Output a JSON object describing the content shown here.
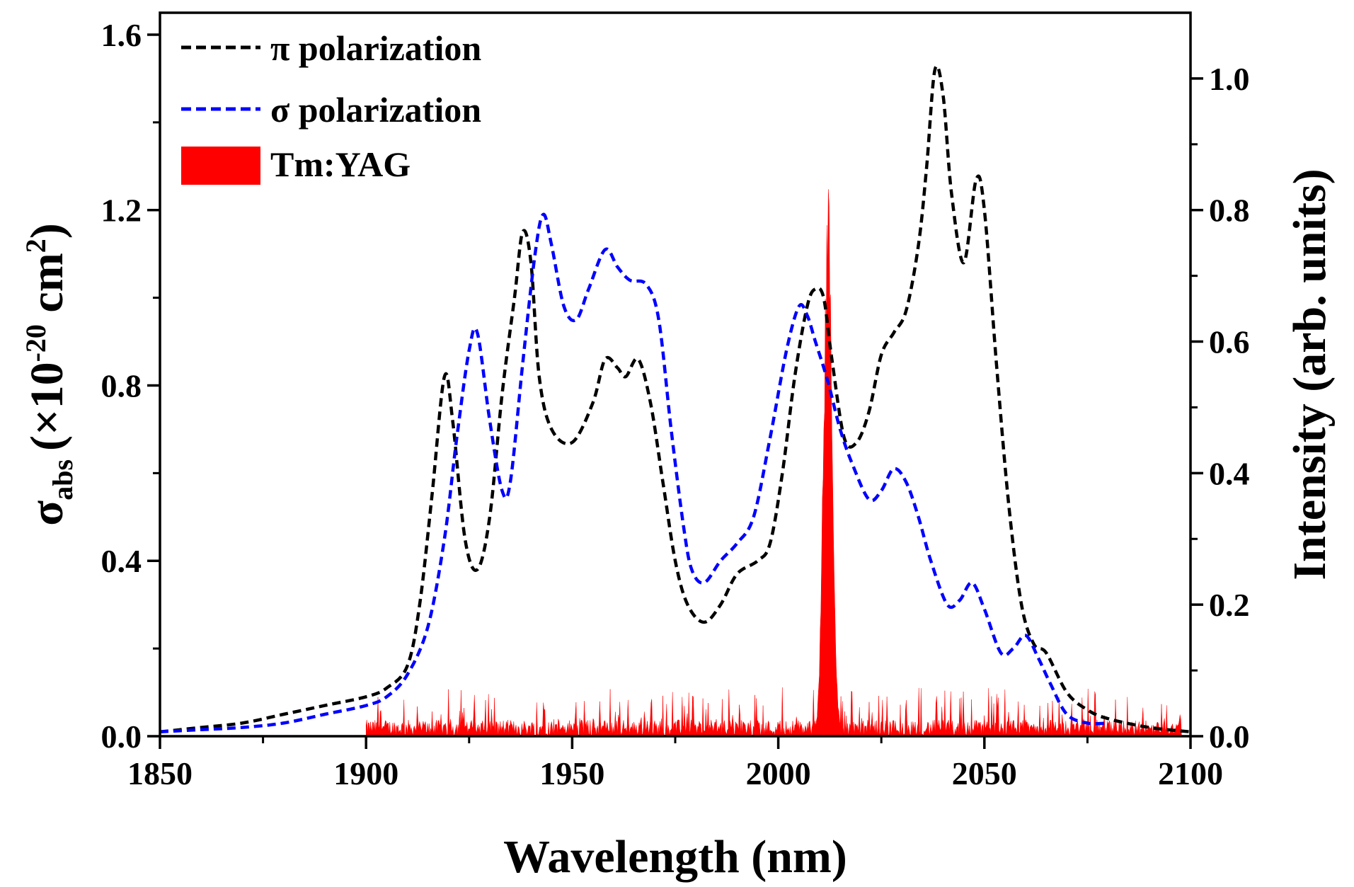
{
  "chart_data": {
    "type": "line",
    "title": "",
    "xlabel": "Wavelength (nm)",
    "ylabel": {
      "symbol": "σ",
      "subscript": "abs",
      "units_prefix": "(×10",
      "units_exponent": "-20",
      "units_middle": " cm",
      "units_power": "2",
      "units_suffix": ")"
    },
    "y2label": "Intensity (arb. units)",
    "xlim": [
      1850,
      2100
    ],
    "ylim": [
      0,
      1.65
    ],
    "y2lim": [
      0,
      1.1
    ],
    "xticks": [
      1850,
      1900,
      1950,
      2000,
      2050,
      2100
    ],
    "xtick_labels": [
      "1850",
      "1900",
      "1950",
      "2000",
      "2050",
      "2100"
    ],
    "yticks": [
      0.0,
      0.4,
      0.8,
      1.2,
      1.6
    ],
    "ytick_labels": [
      "0.0",
      "0.4",
      "0.8",
      "1.2",
      "1.6"
    ],
    "y2ticks": [
      0.0,
      0.2,
      0.4,
      0.6,
      0.8,
      1.0
    ],
    "y2tick_labels": [
      "0.0",
      "0.2",
      "0.4",
      "0.6",
      "0.8",
      "1.0"
    ],
    "legend_position": "top-left",
    "series": [
      {
        "name": "π polarization",
        "axis": "left",
        "style": "dashed",
        "color": "#000000",
        "x": [
          1850,
          1860,
          1870,
          1880,
          1890,
          1900,
          1905,
          1910,
          1913,
          1916,
          1919,
          1921,
          1924,
          1927,
          1930,
          1933,
          1936,
          1938,
          1940,
          1942,
          1945,
          1950,
          1955,
          1958,
          1961,
          1963,
          1966,
          1969,
          1972,
          1975,
          1978,
          1982,
          1986,
          1990,
          1995,
          1998,
          2001,
          2004,
          2007,
          2009,
          2011,
          2013,
          2016,
          2019,
          2022,
          2025,
          2028,
          2031,
          2034,
          2036,
          2038,
          2040,
          2042,
          2045,
          2048,
          2050,
          2053,
          2056,
          2059,
          2062,
          2065,
          2070,
          2075,
          2080,
          2090,
          2100
        ],
        "y": [
          0.01,
          0.02,
          0.03,
          0.05,
          0.07,
          0.09,
          0.11,
          0.16,
          0.3,
          0.55,
          0.82,
          0.72,
          0.45,
          0.38,
          0.5,
          0.78,
          1.0,
          1.15,
          1.08,
          0.82,
          0.7,
          0.67,
          0.76,
          0.86,
          0.84,
          0.82,
          0.86,
          0.76,
          0.58,
          0.4,
          0.3,
          0.26,
          0.3,
          0.37,
          0.4,
          0.44,
          0.6,
          0.82,
          0.98,
          1.02,
          1.0,
          0.86,
          0.68,
          0.67,
          0.74,
          0.87,
          0.92,
          0.97,
          1.12,
          1.3,
          1.52,
          1.46,
          1.24,
          1.08,
          1.27,
          1.2,
          0.84,
          0.52,
          0.3,
          0.21,
          0.19,
          0.1,
          0.06,
          0.04,
          0.02,
          0.01
        ]
      },
      {
        "name": "σ polarization",
        "axis": "left",
        "style": "dashed",
        "color": "#0000ff",
        "x": [
          1850,
          1860,
          1870,
          1880,
          1890,
          1900,
          1905,
          1910,
          1915,
          1919,
          1922,
          1925,
          1927,
          1930,
          1933,
          1935,
          1938,
          1941,
          1943,
          1945,
          1948,
          1951,
          1954,
          1958,
          1961,
          1964,
          1968,
          1971,
          1974,
          1977,
          1979,
          1982,
          1986,
          1990,
          1994,
          1998,
          2002,
          2005,
          2007,
          2009,
          2012,
          2015,
          2018,
          2022,
          2025,
          2028,
          2031,
          2034,
          2037,
          2041,
          2044,
          2047,
          2050,
          2054,
          2057,
          2060,
          2063,
          2066,
          2070,
          2075,
          2080
        ],
        "y": [
          0.01,
          0.015,
          0.02,
          0.03,
          0.05,
          0.07,
          0.09,
          0.14,
          0.25,
          0.45,
          0.68,
          0.88,
          0.92,
          0.72,
          0.56,
          0.58,
          0.85,
          1.1,
          1.19,
          1.12,
          0.98,
          0.95,
          1.02,
          1.11,
          1.07,
          1.04,
          1.03,
          0.95,
          0.7,
          0.48,
          0.38,
          0.35,
          0.4,
          0.44,
          0.5,
          0.68,
          0.88,
          0.98,
          0.96,
          0.9,
          0.81,
          0.7,
          0.62,
          0.54,
          0.56,
          0.61,
          0.58,
          0.5,
          0.4,
          0.3,
          0.31,
          0.35,
          0.29,
          0.19,
          0.2,
          0.23,
          0.18,
          0.12,
          0.05,
          0.03,
          0.03
        ]
      },
      {
        "name": "Tm:YAG",
        "axis": "right",
        "style": "filled",
        "color": "#ff0000",
        "range": [
          1900,
          2098
        ],
        "noise_level": 0.025,
        "noise_max": 0.075,
        "peak_center": 2012,
        "peak_height": 0.85,
        "peak_width": 1.4
      }
    ]
  }
}
